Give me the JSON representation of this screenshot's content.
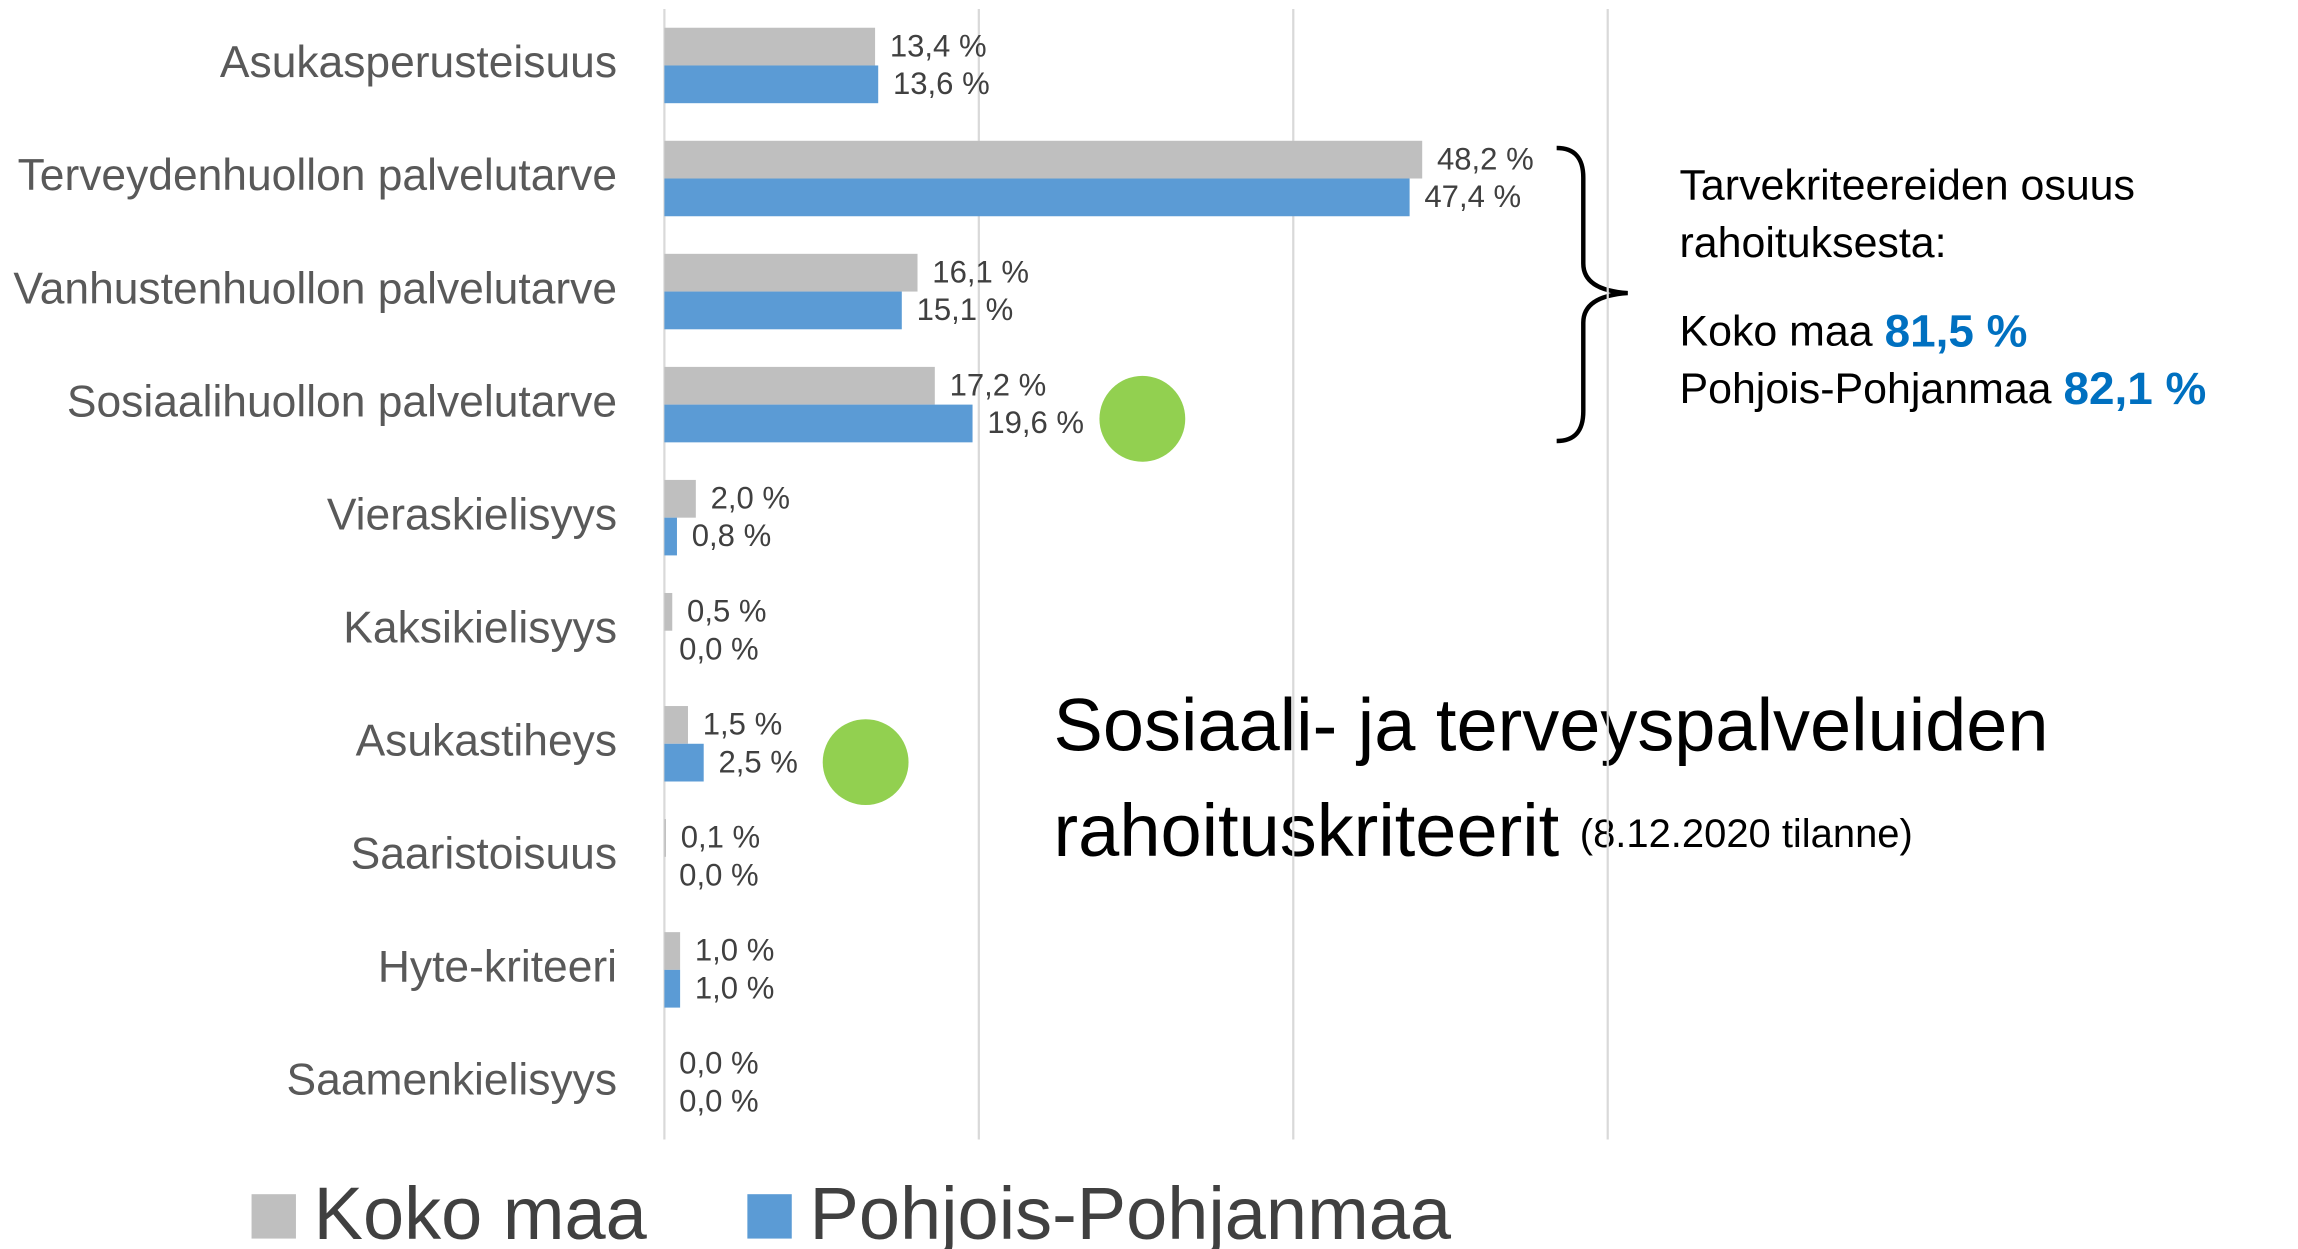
{
  "chart_data": {
    "type": "hbar",
    "categories": [
      "Asukasperusteisuus",
      "Terveydenhuollon palvelutarve",
      "Vanhustenhuollon palvelutarve",
      "Sosiaalihuollon palvelutarve",
      "Vieraskielisyys",
      "Kaksikielisyys",
      "Asukastiheys",
      "Saaristoisuus",
      "Hyte-kriteeri",
      "Saamenkielisyys"
    ],
    "series": [
      {
        "name": "Koko maa",
        "color": "#bfbfbf",
        "values": [
          13.4,
          48.2,
          16.1,
          17.2,
          2.0,
          0.5,
          1.5,
          0.1,
          1.0,
          0.0
        ],
        "value_labels": [
          "13,4 %",
          "48,2 %",
          "16,1 %",
          "17,2 %",
          "2,0 %",
          "0,5 %",
          "1,5 %",
          "0,1 %",
          "1,0 %",
          "0,0 %"
        ]
      },
      {
        "name": "Pohjois-Pohjanmaa",
        "color": "#5b9bd5",
        "values": [
          13.6,
          47.4,
          15.1,
          19.6,
          0.8,
          0.0,
          2.5,
          0.0,
          1.0,
          0.0
        ],
        "value_labels": [
          "13,6 %",
          "47,4 %",
          "15,1 %",
          "19,6 %",
          "0,8 %",
          "0,0 %",
          "2,5 %",
          "0,0 %",
          "1,0 %",
          "0,0 %"
        ]
      }
    ],
    "xlim": [
      0,
      60
    ],
    "xticks": [
      0,
      20,
      40,
      60
    ],
    "grid": true,
    "legend": "bottom",
    "title": [
      "Sosiaali- ja terveyspalveluiden",
      "rahoituskriteerit"
    ],
    "subtitle": "(8.12.2020 tilanne)",
    "summary": {
      "heading": [
        "Tarvekriteereiden osuus",
        "rahoituksesta:"
      ],
      "lines": [
        {
          "label": "Koko maa",
          "value": "81,5 %"
        },
        {
          "label": "Pohjois-Pohjanmaa",
          "value": "82,1 %"
        }
      ]
    }
  }
}
